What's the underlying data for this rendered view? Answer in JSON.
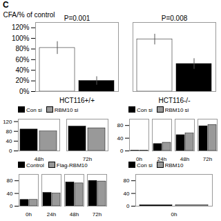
{
  "chart_data": [
    {
      "type": "bar",
      "title": "C",
      "categories": [
        "HCT116+/+",
        "HCT116-/-"
      ],
      "series": [
        {
          "color": "white",
          "values": [
            82,
            98
          ],
          "errors": [
            12,
            10
          ]
        },
        {
          "color": "black",
          "values": [
            20,
            52
          ],
          "errors": [
            8,
            10
          ]
        }
      ],
      "ylabel": "CFA/% of control",
      "ylim": [
        0,
        130
      ],
      "yticks": [
        {
          "value": 0,
          "label": "0%"
        },
        {
          "value": 20,
          "label": "20%"
        },
        {
          "value": 40,
          "label": "40%"
        },
        {
          "value": 60,
          "label": "60%"
        },
        {
          "value": 80,
          "label": "80%"
        },
        {
          "value": 100,
          "label": "100%"
        },
        {
          "value": 120,
          "label": "120%"
        }
      ],
      "annotations": [
        {
          "category": "HCT116+/+",
          "text": "P=0.001"
        },
        {
          "category": "HCT116-/-",
          "text": "P=0.008"
        }
      ]
    },
    {
      "type": "bar",
      "categories": [
        "48h",
        "72h"
      ],
      "series": [
        {
          "name": "Con si",
          "color": "black",
          "values": [
            88,
            100
          ]
        },
        {
          "name": "RBM10 si",
          "color": "#999999",
          "values": [
            80,
            93
          ]
        }
      ],
      "ylim": [
        0,
        130
      ],
      "yticks": [
        0,
        40,
        80,
        120
      ],
      "legend": "upper left"
    },
    {
      "type": "bar",
      "categories": [
        "0h",
        "24h",
        "48h",
        "72h"
      ],
      "series": [
        {
          "name": "Con si",
          "color": "black",
          "values": [
            1,
            22,
            50,
            78
          ]
        },
        {
          "name": "RBM10 si",
          "color": "#999999",
          "values": [
            1,
            26,
            55,
            82
          ]
        }
      ],
      "ylim": [
        0,
        100
      ],
      "yticks": [
        0,
        40,
        80
      ],
      "legend": "upper left"
    },
    {
      "type": "bar",
      "categories": [
        "0h",
        "24h",
        "48h",
        "72h"
      ],
      "series": [
        {
          "name": "Control",
          "color": "black",
          "values": [
            20,
            42,
            75,
            80
          ]
        },
        {
          "name": "Flag-RBM10",
          "color": "#999999",
          "values": [
            20,
            40,
            72,
            78
          ]
        }
      ],
      "ylim": [
        0,
        100
      ],
      "yticks": [
        0,
        40,
        80
      ],
      "legend": "upper left"
    },
    {
      "type": "bar",
      "categories": [
        "0h"
      ],
      "series": [
        {
          "name": "Con si",
          "color": "black",
          "values": [
            3
          ]
        },
        {
          "name": "RBM10",
          "color": "#999999",
          "values": [
            3
          ]
        }
      ],
      "ylim": [
        0,
        100
      ],
      "yticks": [
        0,
        40,
        80
      ],
      "legend": "upper left"
    }
  ]
}
